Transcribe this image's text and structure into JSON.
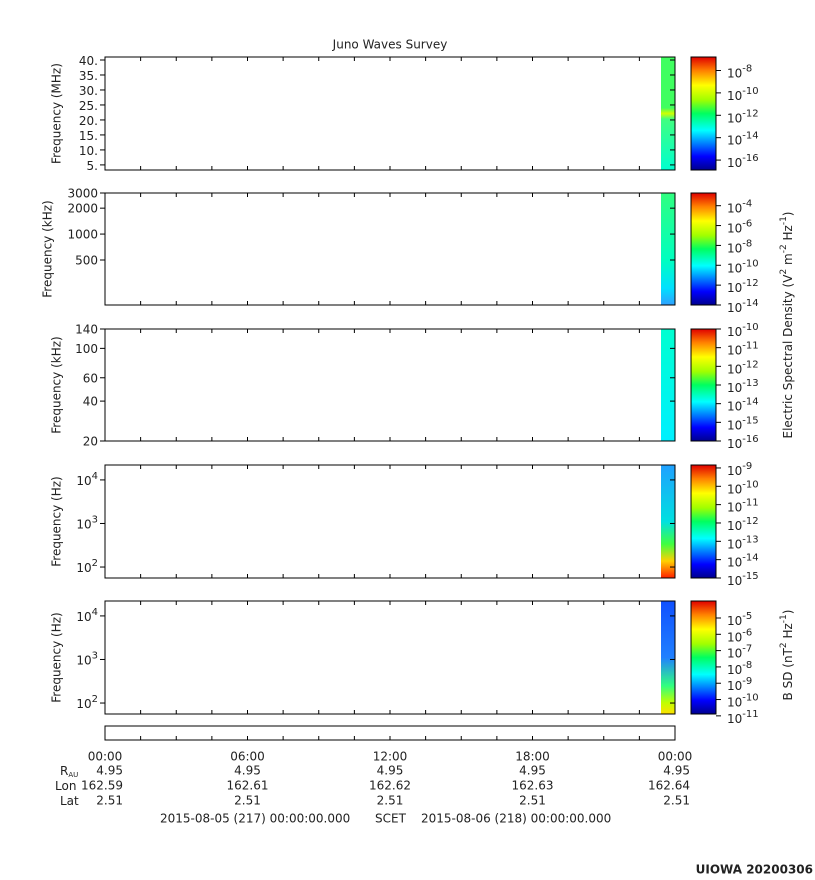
{
  "title": "Juno Waves Survey",
  "chart_data": [
    {
      "type": "spectrogram",
      "ylabel": "Frequency (MHz)",
      "log": false,
      "ylim": [
        3.3,
        41
      ],
      "yticks": [
        {
          "value": 5,
          "label": "5."
        },
        {
          "value": 10,
          "label": "10."
        },
        {
          "value": 15,
          "label": "15."
        },
        {
          "value": 20,
          "label": "20."
        },
        {
          "value": 25,
          "label": "25."
        },
        {
          "value": 30,
          "label": "30."
        },
        {
          "value": 35,
          "label": "35."
        },
        {
          "value": 40,
          "label": "40."
        }
      ],
      "colorbar": {
        "lim": [
          1.3e-17,
          1.6e-07
        ],
        "ticks": [
          {
            "value": 1e-08,
            "label": "10",
            "exponent": "-8"
          },
          {
            "value": 1e-10,
            "label": "10",
            "exponent": "-10"
          },
          {
            "value": 1e-12,
            "label": "10",
            "exponent": "-12"
          },
          {
            "value": 1e-14,
            "label": "10",
            "exponent": "-14"
          },
          {
            "value": 1e-16,
            "label": "10",
            "exponent": "-16"
          }
        ]
      }
    },
    {
      "type": "spectrogram",
      "ylabel": "Frequency (kHz)",
      "log": true,
      "ylim": [
        150,
        3000
      ],
      "yticks": [
        500,
        1000,
        2000,
        3000
      ],
      "colorbar": {
        "lim": [
          1e-14,
          0.0019
        ],
        "ticks": [
          {
            "value": 0.0001,
            "label": "10",
            "exponent": "-4"
          },
          {
            "value": 1e-06,
            "label": "10",
            "exponent": "-6"
          },
          {
            "value": 1e-08,
            "label": "10",
            "exponent": "-8"
          },
          {
            "value": 1e-10,
            "label": "10",
            "exponent": "-10"
          },
          {
            "value": 1e-12,
            "label": "10",
            "exponent": "-12"
          },
          {
            "value": 1e-14,
            "label": "10",
            "exponent": "-14"
          }
        ]
      }
    },
    {
      "type": "spectrogram",
      "ylabel": "Frequency (kHz)",
      "log": true,
      "ylim": [
        20,
        140
      ],
      "yticks": [
        20,
        40,
        60,
        100,
        140
      ],
      "colorbar": {
        "lim": [
          1e-16,
          1e-10
        ],
        "ticks": [
          {
            "value": 1e-10,
            "label": "10",
            "exponent": "-10"
          },
          {
            "value": 1e-11,
            "label": "10",
            "exponent": "-11"
          },
          {
            "value": 1e-12,
            "label": "10",
            "exponent": "-12"
          },
          {
            "value": 1e-13,
            "label": "10",
            "exponent": "-13"
          },
          {
            "value": 1e-14,
            "label": "10",
            "exponent": "-14"
          },
          {
            "value": 1e-15,
            "label": "10",
            "exponent": "-15"
          },
          {
            "value": 1e-16,
            "label": "10",
            "exponent": "-16"
          }
        ]
      }
    },
    {
      "type": "spectrogram",
      "ylabel": "Frequency (Hz)",
      "log": true,
      "ylim": [
        56,
        22000
      ],
      "yticks": [
        {
          "value": 100,
          "label": "10",
          "exponent": "2"
        },
        {
          "value": 1000,
          "label": "10",
          "exponent": "3"
        },
        {
          "value": 10000,
          "label": "10",
          "exponent": "4"
        }
      ],
      "colorbar": {
        "lim": [
          1e-15,
          1.45e-09
        ],
        "ticks": [
          {
            "value": 1e-09,
            "label": "10",
            "exponent": "-9"
          },
          {
            "value": 1e-10,
            "label": "10",
            "exponent": "-10"
          },
          {
            "value": 1e-11,
            "label": "10",
            "exponent": "-11"
          },
          {
            "value": 1e-12,
            "label": "10",
            "exponent": "-12"
          },
          {
            "value": 1e-13,
            "label": "10",
            "exponent": "-13"
          },
          {
            "value": 1e-14,
            "label": "10",
            "exponent": "-14"
          },
          {
            "value": 1e-15,
            "label": "10",
            "exponent": "-15"
          }
        ]
      }
    },
    {
      "type": "spectrogram",
      "ylabel": "Frequency (Hz)",
      "log": true,
      "ylim": [
        56,
        22000
      ],
      "yticks": [
        {
          "value": 100,
          "label": "10",
          "exponent": "2"
        },
        {
          "value": 1000,
          "label": "10",
          "exponent": "3"
        },
        {
          "value": 10000,
          "label": "10",
          "exponent": "4"
        }
      ],
      "colorbar": {
        "lim": [
          1.3e-11,
          0.00011
        ],
        "ticks": [
          {
            "value": 1e-05,
            "label": "10",
            "exponent": "-5"
          },
          {
            "value": 1e-06,
            "label": "10",
            "exponent": "-6"
          },
          {
            "value": 1e-07,
            "label": "10",
            "exponent": "-7"
          },
          {
            "value": 1e-08,
            "label": "10",
            "exponent": "-8"
          },
          {
            "value": 1e-09,
            "label": "10",
            "exponent": "-9"
          },
          {
            "value": 1e-10,
            "label": "10",
            "exponent": "-10"
          },
          {
            "value": 1e-11,
            "label": "10",
            "exponent": "-11"
          }
        ]
      }
    }
  ],
  "colorbar_labels": [
    {
      "parts": [
        "Electric Spectral Density (V",
        "2",
        " m",
        "-2",
        " Hz",
        "-1",
        ")"
      ]
    },
    {
      "parts": [
        "B SD (nT",
        "2",
        " Hz",
        "-1",
        ")"
      ]
    }
  ],
  "time_axis": {
    "ticks": [
      "00:00",
      "06:00",
      "12:00",
      "18:00",
      "00:00"
    ]
  },
  "ephemeris": [
    {
      "label": "R",
      "sub": "AU",
      "values": [
        4.95,
        4.95,
        4.95,
        4.95,
        4.95
      ]
    },
    {
      "label": "Lon",
      "values": [
        162.59,
        162.61,
        162.62,
        162.63,
        162.64
      ]
    },
    {
      "label": "Lat",
      "values": [
        2.51,
        2.51,
        2.51,
        2.51,
        2.51
      ]
    }
  ],
  "time_range": {
    "start": "2015-08-05 (217) 00:00:00.000",
    "system": "SCET",
    "end": "2015-08-06 (218) 00:00:00.000"
  },
  "footer": "UIOWA 20200306"
}
